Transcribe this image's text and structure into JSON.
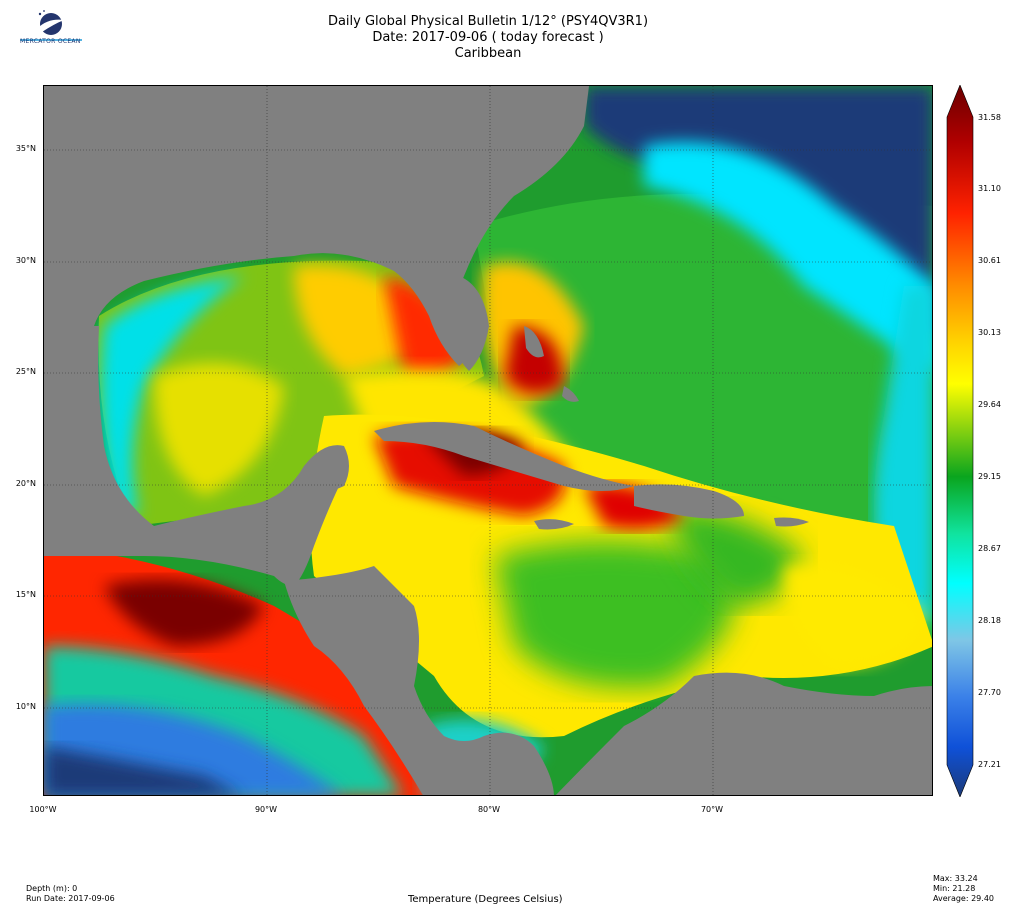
{
  "header": {
    "title_line1": "Daily Global Physical Bulletin 1/12° (PSY4QV3R1)",
    "title_line2": "Date: 2017-09-06 ( today forecast )",
    "title_line3": "Caribbean",
    "logo_text": "MERCATOR OCEAN"
  },
  "map": {
    "latitude_labels": [
      "35°N",
      "30°N",
      "25°N",
      "20°N",
      "15°N",
      "10°N"
    ],
    "longitude_labels": [
      "100°W",
      "90°W",
      "80°W",
      "70°W"
    ],
    "land_color": "#808080"
  },
  "colorbar": {
    "labels": [
      "31.58",
      "31.10",
      "30.61",
      "30.13",
      "29.64",
      "29.15",
      "28.67",
      "28.18",
      "27.70",
      "27.21"
    ],
    "colors": [
      "#6b0000",
      "#c50000",
      "#ff2200",
      "#ff8a00",
      "#ffd200",
      "#ffff00",
      "#8fd40f",
      "#0aa51e",
      "#10e39e",
      "#00ffff",
      "#7fc6e6",
      "#3a80e8",
      "#0f51d8",
      "#1c3a78"
    ]
  },
  "footer": {
    "depth": "Depth (m): 0",
    "run_date": "Run Date: 2017-09-06",
    "variable": "Temperature (Degrees Celsius)",
    "max": "Max: 33.24",
    "min": "Min: 21.28",
    "average": "Average: 29.40"
  }
}
